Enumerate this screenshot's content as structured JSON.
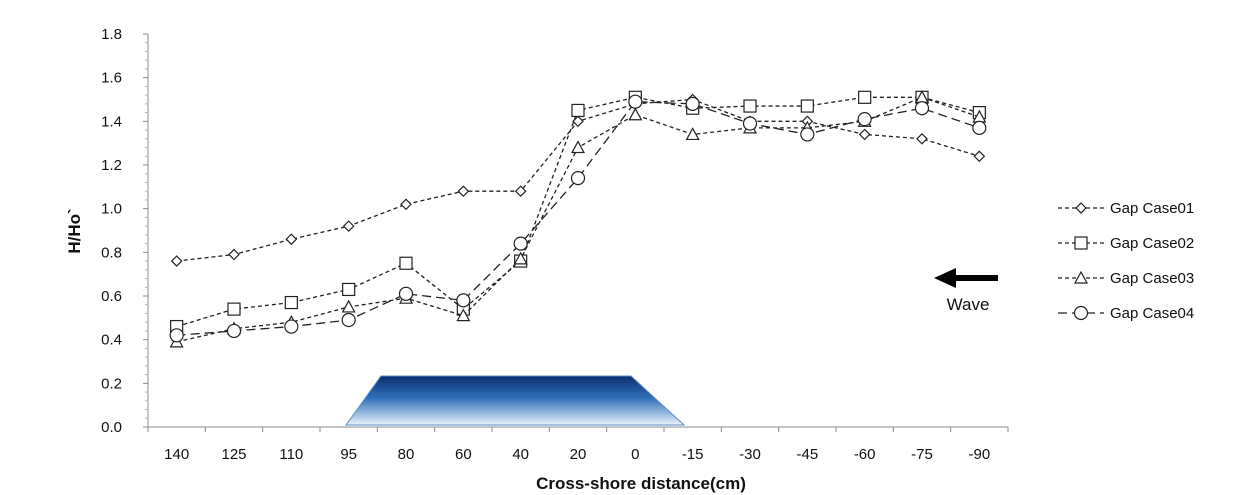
{
  "chart_data": {
    "type": "line",
    "xlabel": "Cross-shore distance(cm)",
    "ylabel": "H/Ho`",
    "categories": [
      "140",
      "125",
      "110",
      "95",
      "80",
      "60",
      "40",
      "20",
      "0",
      "-15",
      "-30",
      "-45",
      "-60",
      "-75",
      "-90"
    ],
    "yticks": [
      "0.0",
      "0.2",
      "0.4",
      "0.6",
      "0.8",
      "1.0",
      "1.2",
      "1.4",
      "1.6",
      "1.8"
    ],
    "ylim": [
      0,
      1.8
    ],
    "grid": false,
    "legend_position": "right",
    "series": [
      {
        "name": "Gap Case01",
        "marker": "diamond",
        "dash": "4,3",
        "values": [
          0.76,
          0.79,
          0.86,
          0.92,
          1.02,
          1.08,
          1.08,
          1.4,
          1.48,
          1.5,
          1.4,
          1.4,
          1.34,
          1.32,
          1.24
        ]
      },
      {
        "name": "Gap Case02",
        "marker": "square",
        "dash": "4,3",
        "values": [
          0.46,
          0.54,
          0.57,
          0.63,
          0.75,
          0.54,
          0.76,
          1.45,
          1.51,
          1.46,
          1.47,
          1.47,
          1.51,
          1.51,
          1.44
        ]
      },
      {
        "name": "Gap Case03",
        "marker": "triangle",
        "dash": "4,3",
        "values": [
          0.39,
          0.45,
          0.48,
          0.55,
          0.59,
          0.51,
          0.77,
          1.28,
          1.43,
          1.34,
          1.37,
          1.37,
          1.4,
          1.51,
          1.42
        ]
      },
      {
        "name": "Gap Case04",
        "marker": "circle",
        "dash": "9,5",
        "values": [
          0.42,
          0.44,
          0.46,
          0.49,
          0.61,
          0.58,
          0.84,
          1.14,
          1.49,
          1.48,
          1.39,
          1.34,
          1.41,
          1.46,
          1.37
        ]
      }
    ],
    "annotations": {
      "wave_label": "Wave"
    }
  }
}
